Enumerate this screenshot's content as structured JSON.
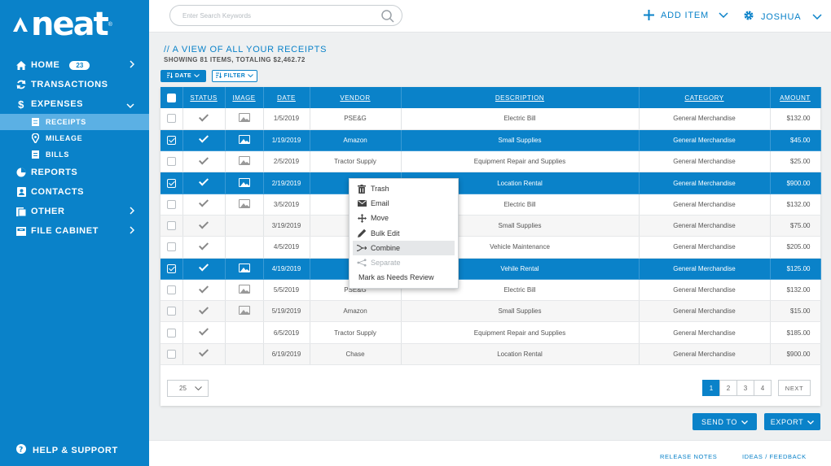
{
  "app": {
    "logo_text": "neat"
  },
  "sidebar": {
    "items": [
      {
        "label": "HOME",
        "badge": "23",
        "icon": "home-icon"
      },
      {
        "label": "TRANSACTIONS",
        "icon": "sync-icon"
      },
      {
        "label": "EXPENSES",
        "icon": "dollar-icon"
      },
      {
        "label": "REPORTS",
        "icon": "pie-icon"
      },
      {
        "label": "CONTACTS",
        "icon": "contacts-icon"
      },
      {
        "label": "OTHER",
        "icon": "folder-icon"
      },
      {
        "label": "FILE CABINET",
        "icon": "cabinet-icon"
      }
    ],
    "subitems": [
      {
        "label": "RECEIPTS",
        "icon": "receipt-icon"
      },
      {
        "label": "MILEAGE",
        "icon": "location-icon"
      },
      {
        "label": "BILLS",
        "icon": "bill-icon"
      }
    ],
    "help_label": "HELP & SUPPORT"
  },
  "topbar": {
    "search_placeholder": "Enter Search Keywords",
    "add_item_label": "ADD ITEM",
    "user_label": "JOSHUA"
  },
  "main": {
    "heading": "// A VIEW OF ALL YOUR RECEIPTS",
    "subheading": "SHOWING 81 ITEMS, TOTALING $2,462.72",
    "date_button": "DATE",
    "filter_button": "FILTER"
  },
  "table": {
    "columns": [
      "STATUS",
      "IMAGE",
      "DATE",
      "VENDOR",
      "DESCRIPTION",
      "CATEGORY",
      "AMOUNT"
    ],
    "rows": [
      {
        "date": "1/5/2019",
        "vendor": "PSE&G",
        "description": "Electric Bill",
        "category": "General Merchandise",
        "amount": "$132.00"
      },
      {
        "date": "1/19/2019",
        "vendor": "Amazon",
        "description": "Small Supplies",
        "category": "General Merchandise",
        "amount": "$45.00"
      },
      {
        "date": "2/5/2019",
        "vendor": "Tractor Supply",
        "description": "Equipment Repair and Supplies",
        "category": "General Merchandise",
        "amount": "$25.00"
      },
      {
        "date": "2/19/2019",
        "vendor": "C",
        "description": "Location Rental",
        "category": "General Merchandise",
        "amount": "$900.00"
      },
      {
        "date": "3/5/2019",
        "vendor": "P",
        "description": "Electric Bill",
        "category": "General Merchandise",
        "amount": "$132.00"
      },
      {
        "date": "3/19/2019",
        "vendor": "A",
        "description": "Small Supplies",
        "category": "General Merchandise",
        "amount": "$75.00"
      },
      {
        "date": "4/5/2019",
        "vendor": "Bill",
        "description": "Vehicle Maintenance",
        "category": "General Merchandise",
        "amount": "$205.00"
      },
      {
        "date": "4/19/2019",
        "vendor": "",
        "description": "Vehile Rental",
        "category": "General Merchandise",
        "amount": "$125.00"
      },
      {
        "date": "5/5/2019",
        "vendor": "PSE&G",
        "description": "Electric Bill",
        "category": "General Merchandise",
        "amount": "$132.00"
      },
      {
        "date": "5/19/2019",
        "vendor": "Amazon",
        "description": "Small Supplies",
        "category": "General Merchandise",
        "amount": "$15.00"
      },
      {
        "date": "6/5/2019",
        "vendor": "Tractor Supply",
        "description": "Equipment Repair and Supplies",
        "category": "General Merchandise",
        "amount": "$185.00"
      },
      {
        "date": "6/19/2019",
        "vendor": "Chase",
        "description": "Location Rental",
        "category": "General Merchandise",
        "amount": "$900.00"
      }
    ]
  },
  "pagination": {
    "per_page": "25",
    "pages": [
      "1",
      "2",
      "3",
      "4"
    ],
    "next_label": "NEXT"
  },
  "actions": {
    "send_to": "SEND TO",
    "export": "EXPORT"
  },
  "footer": {
    "release_notes": "RELEASE NOTES",
    "ideas": "IDEAS / FEEDBACK"
  },
  "context_menu": {
    "items": [
      {
        "label": "Trash",
        "icon": "trash-icon"
      },
      {
        "label": "Email",
        "icon": "email-icon"
      },
      {
        "label": "Move",
        "icon": "move-icon"
      },
      {
        "label": "Bulk Edit",
        "icon": "pencil-icon"
      },
      {
        "label": "Combine",
        "icon": "combine-icon"
      },
      {
        "label": "Separate",
        "icon": "separate-icon"
      },
      {
        "label": "Mark as Needs Review",
        "icon": ""
      }
    ]
  }
}
